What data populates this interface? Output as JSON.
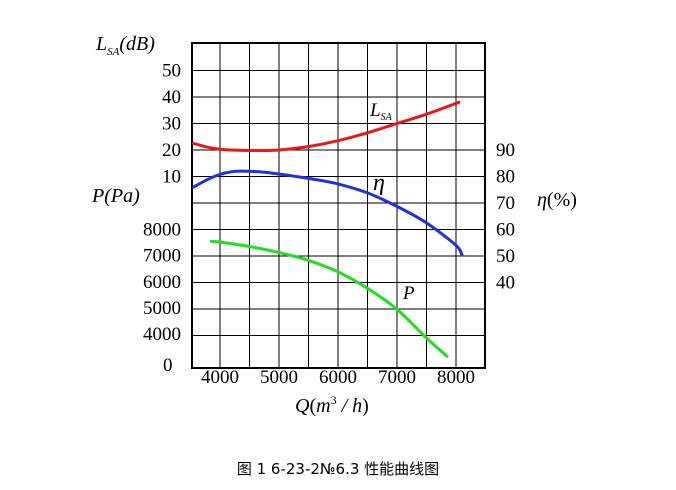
{
  "caption": "图 1 6-23-2№6.3 性能曲线图",
  "chart_data": {
    "type": "line",
    "x": {
      "label_parts": {
        "q": "Q",
        "paren_open": "(",
        "unit_m": "m",
        "unit_sup": "3",
        "slash": " / ",
        "unit_h": "h",
        "paren_close": ")"
      },
      "range": [
        3500,
        8250
      ],
      "ticks": [
        4000,
        5000,
        6000,
        7000,
        8000
      ],
      "tick_labels": [
        "4000",
        "5000",
        "6000",
        "7000",
        "8000"
      ]
    },
    "axes": {
      "lsa": {
        "label_parts": {
          "l": "L",
          "sub": "SA",
          "unit": "(dB)"
        },
        "range": [
          0,
          50
        ],
        "ticks": [
          10,
          20,
          30,
          40,
          50
        ],
        "tick_labels": [
          "10",
          "20",
          "30",
          "40",
          "50"
        ]
      },
      "eta": {
        "label_parts": {
          "eta": "η",
          "unit": "(%)"
        },
        "range": [
          40,
          90
        ],
        "ticks": [
          40,
          50,
          60,
          70,
          80,
          90
        ],
        "tick_labels": [
          "40",
          "50",
          "60",
          "70",
          "80",
          "90"
        ]
      },
      "p": {
        "label_parts": {
          "p": "P",
          "unit": "(Pa)"
        },
        "range": [
          3000,
          8000
        ],
        "ticks": [
          4000,
          5000,
          6000,
          7000,
          8000
        ],
        "tick_labels": [
          "4000",
          "5000",
          "6000",
          "7000",
          "8000"
        ],
        "zero_label": "0"
      }
    },
    "series": [
      {
        "name": "L",
        "name_sub": "SA",
        "axis": "lsa",
        "color": "#e81818",
        "x": [
          3550,
          3800,
          4000,
          4300,
          4600,
          5000,
          5500,
          6000,
          6500,
          7000,
          7500,
          8050
        ],
        "y": [
          22.5,
          21.0,
          20.3,
          19.9,
          19.8,
          20.0,
          21.3,
          23.5,
          26.5,
          30.0,
          33.5,
          38.0
        ]
      },
      {
        "name": "η",
        "axis": "eta",
        "color": "#1f33d6",
        "x": [
          3550,
          3800,
          4000,
          4200,
          4450,
          4800,
          5200,
          5600,
          6000,
          6500,
          7000,
          7500,
          8000,
          8100
        ],
        "y": [
          76.0,
          79.0,
          80.8,
          81.8,
          82.0,
          81.5,
          80.3,
          78.9,
          77.2,
          73.8,
          68.7,
          62.5,
          54.0,
          50.5
        ]
      },
      {
        "name": "P",
        "axis": "p",
        "color": "#1ee01e",
        "x": [
          3850,
          4000,
          4500,
          5000,
          5500,
          6000,
          6500,
          7000,
          7500,
          7850
        ],
        "y": [
          7550,
          7520,
          7350,
          7120,
          6820,
          6380,
          5750,
          4950,
          3850,
          3150
        ]
      }
    ],
    "grid": true,
    "legend": "none"
  }
}
